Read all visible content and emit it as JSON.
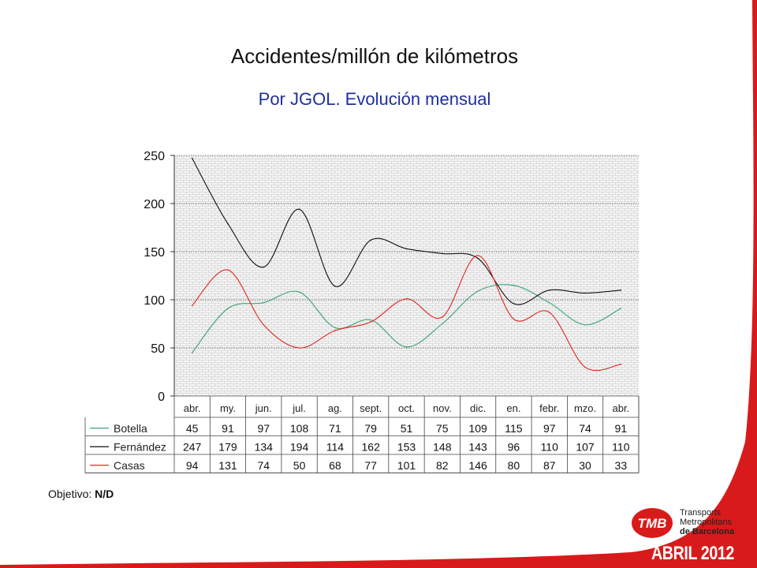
{
  "slide": {
    "title": "Accidentes/millón de kilómetros",
    "subtitle": "Por JGOL. Evolución mensual",
    "objective_label": "Objetivo:",
    "objective_value": "N/D",
    "footer_date": "ABRIL 2012",
    "accent_color": "#d91a1a",
    "subtitle_color": "#1f2f9e"
  },
  "logo": {
    "mark": "TMB",
    "line1": "Transports",
    "line2": "Metropolitans",
    "line3": "de Barcelona"
  },
  "chart_data": {
    "type": "line",
    "title": "",
    "xlabel": "",
    "ylabel": "",
    "ylim": [
      0,
      250
    ],
    "yticks": [
      0,
      50,
      100,
      150,
      200,
      250
    ],
    "grid": true,
    "legend": "data-table-below",
    "categories": [
      "abr.",
      "my.",
      "jun.",
      "jul.",
      "ag.",
      "sept.",
      "oct.",
      "nov.",
      "dic.",
      "en.",
      "febr.",
      "mzo.",
      "abr."
    ],
    "series": [
      {
        "name": "Botella",
        "color": "#3aa272",
        "values": [
          45,
          91,
          97,
          108,
          71,
          79,
          51,
          75,
          109,
          115,
          97,
          74,
          91
        ]
      },
      {
        "name": "Fernández",
        "color": "#111111",
        "values": [
          247,
          179,
          134,
          194,
          114,
          162,
          153,
          148,
          143,
          96,
          110,
          107,
          110
        ]
      },
      {
        "name": "Casas",
        "color": "#e3261e",
        "values": [
          94,
          131,
          74,
          50,
          68,
          77,
          101,
          82,
          146,
          80,
          87,
          30,
          33
        ]
      }
    ]
  }
}
